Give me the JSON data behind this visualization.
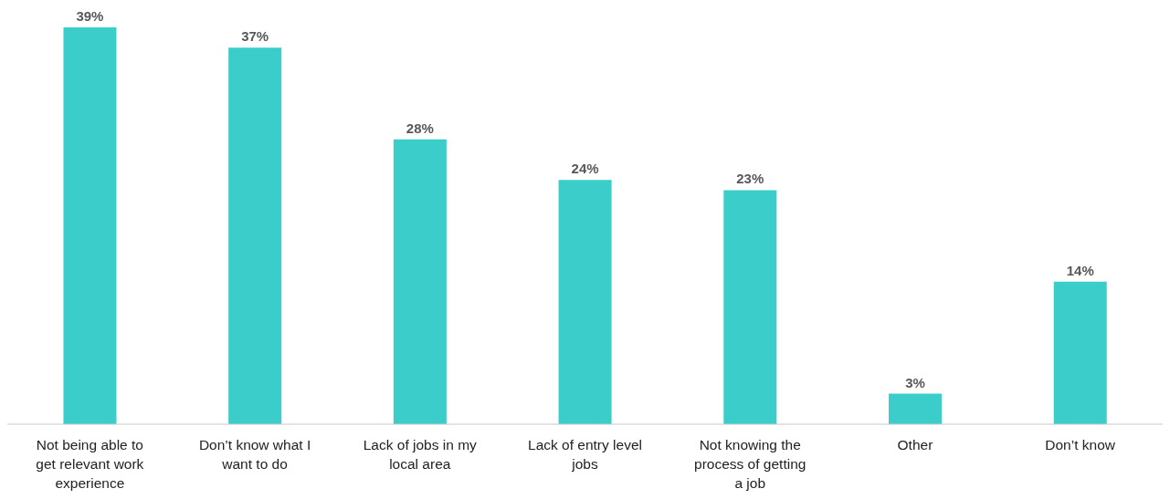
{
  "chart_data": {
    "type": "bar",
    "categories": [
      "Not being able to get relevant work experience",
      "Don’t know what I want to do",
      "Lack of jobs in my local area",
      "Lack of entry level jobs",
      "Not knowing the process of getting a job",
      "Other",
      "Don’t know"
    ],
    "values": [
      39,
      37,
      28,
      24,
      23,
      3,
      14
    ],
    "value_labels": [
      "39%",
      "37%",
      "28%",
      "24%",
      "23%",
      "3%",
      "14%"
    ],
    "color": "#3bcdca"
  }
}
